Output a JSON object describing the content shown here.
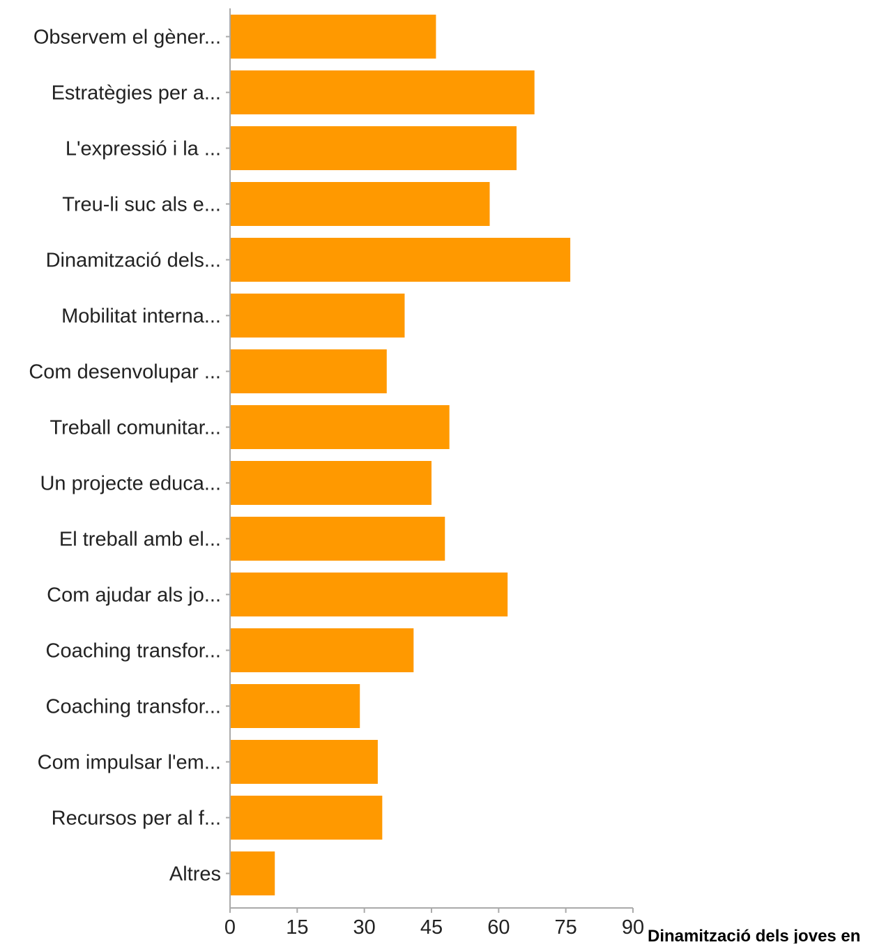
{
  "caption": "Dinamització dels joves en",
  "chart_data": {
    "type": "bar",
    "orientation": "horizontal",
    "categories": [
      "Observem el gèner...",
      "Estratègies per a...",
      "L'expressió i la ...",
      "Treu-li suc als e...",
      "Dinamització dels...",
      "Mobilitat interna...",
      "Com desenvolupar ...",
      "Treball comunitar...",
      "Un projecte educa...",
      "El treball amb el...",
      "Com ajudar als jo...",
      "Coaching transfor...",
      "Coaching transfor...",
      "Com impulsar l'em...",
      "Recursos per al f...",
      "Altres"
    ],
    "values": [
      46,
      68,
      64,
      58,
      76,
      39,
      35,
      49,
      45,
      48,
      62,
      41,
      29,
      33,
      34,
      10
    ],
    "xlim": [
      0,
      90
    ],
    "xticks": [
      "0",
      "15",
      "30",
      "45",
      "60",
      "75",
      "90"
    ],
    "grid": false,
    "bar_color": "#ff9900",
    "axis_color": "#aaaaaa"
  }
}
